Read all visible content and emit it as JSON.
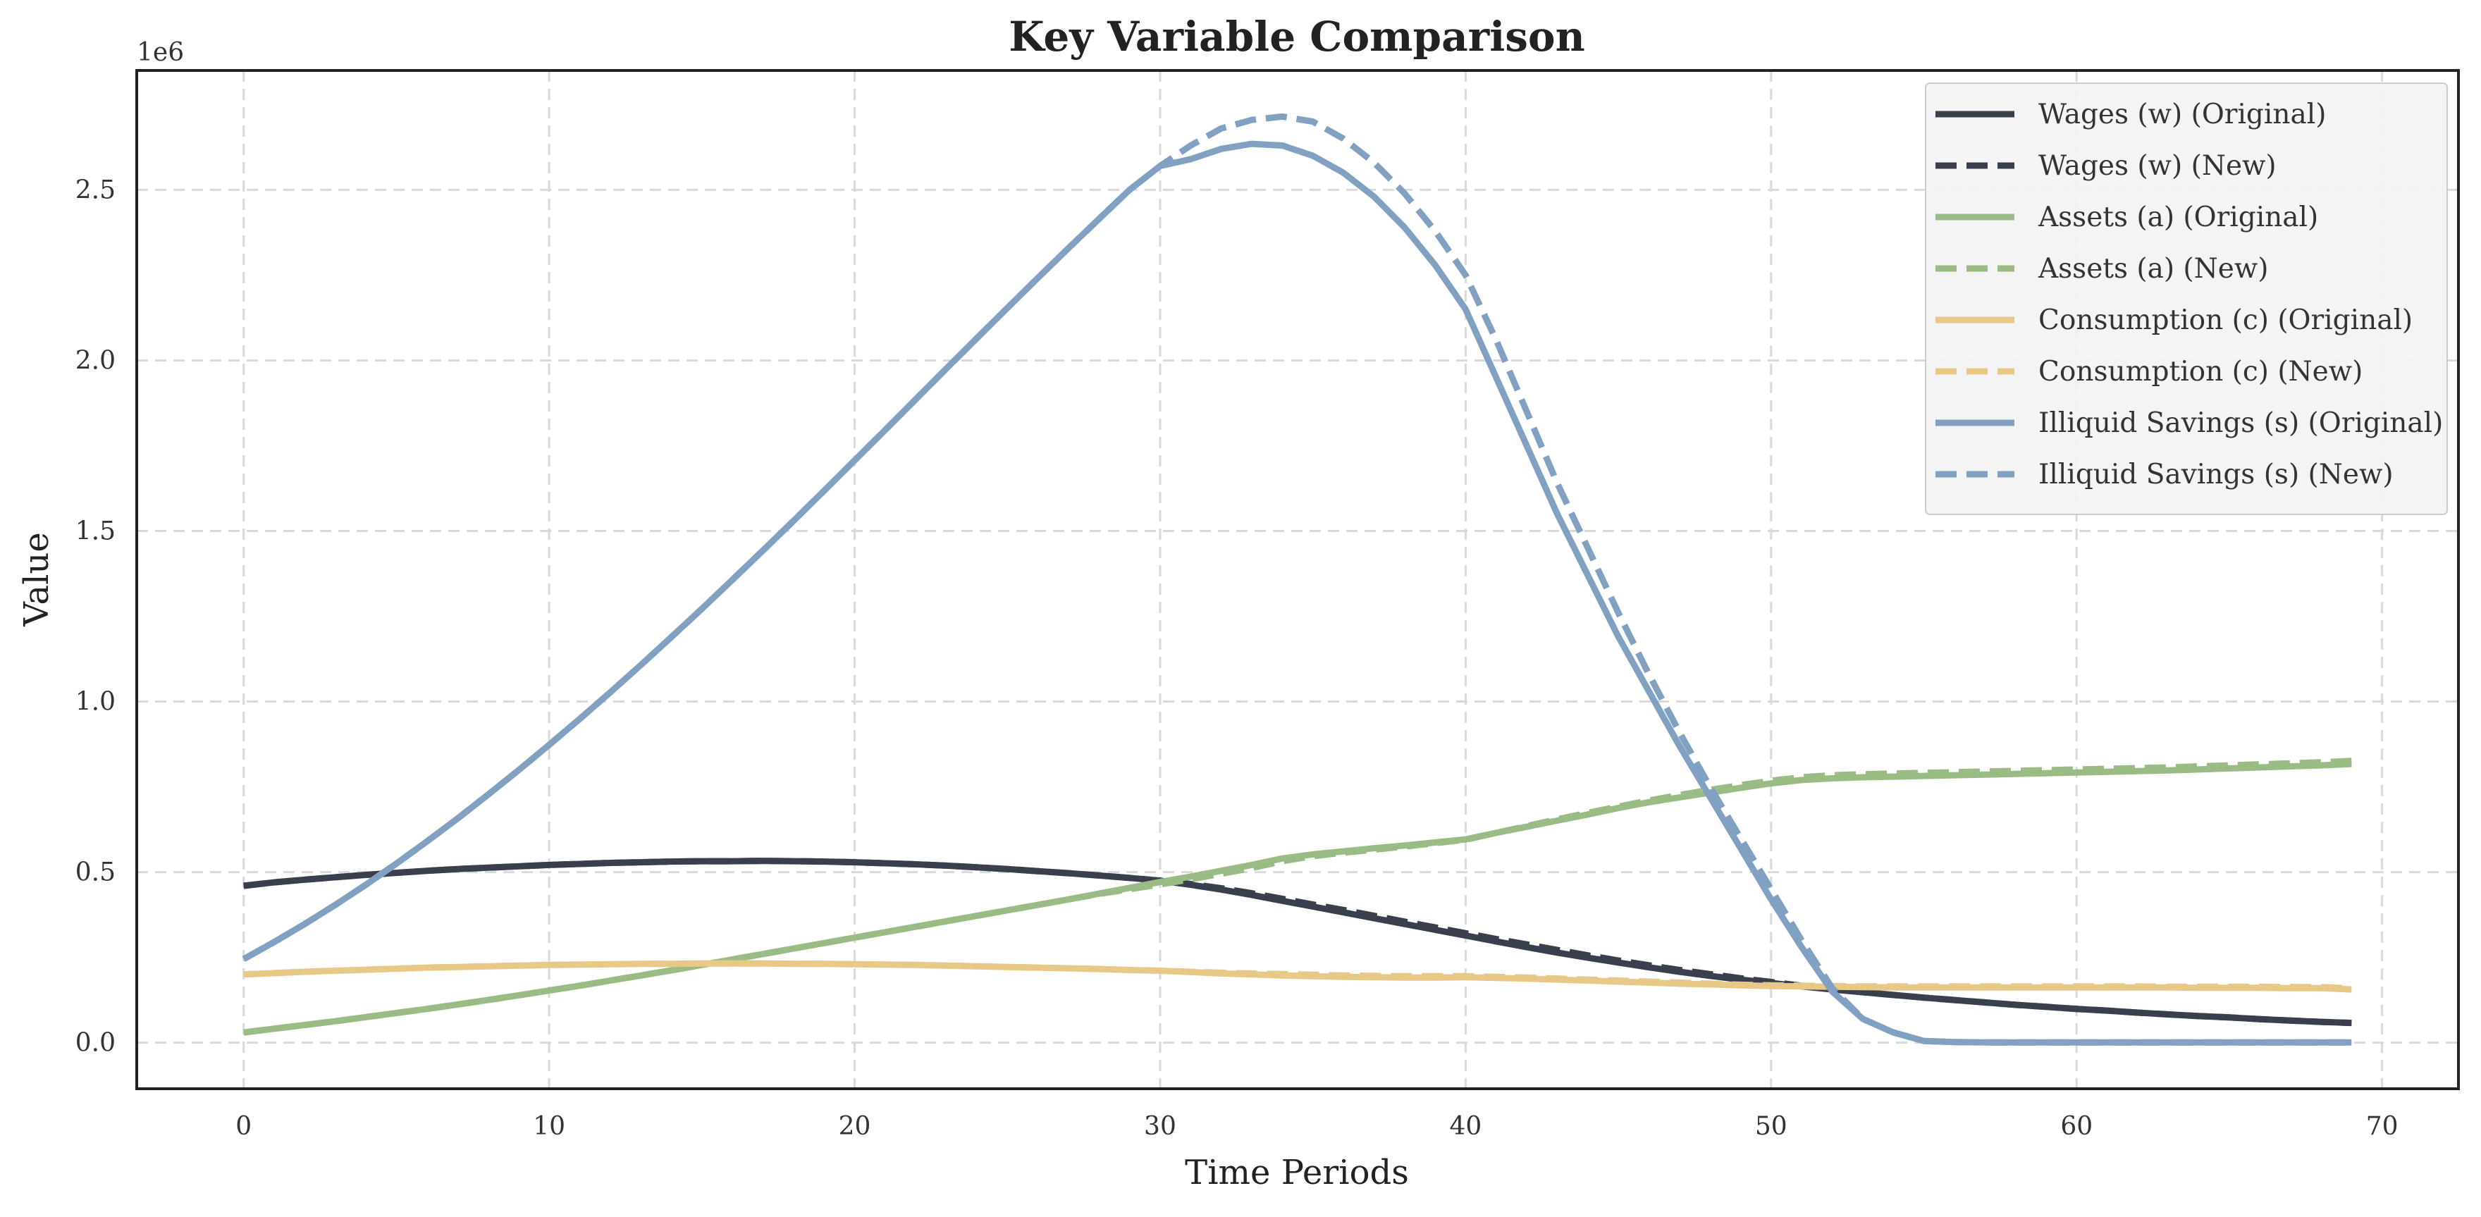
{
  "chart_data": {
    "type": "line",
    "title": "Key Variable Comparison",
    "xlabel": "Time Periods",
    "ylabel": "Value",
    "y_offset_label": "1e6",
    "xlim": [
      -3.5,
      72.5
    ],
    "ylim": [
      -0.135,
      2.85
    ],
    "x_ticks": [
      0,
      10,
      20,
      30,
      40,
      50,
      60,
      70
    ],
    "x_tick_labels": [
      "0",
      "10",
      "20",
      "30",
      "40",
      "50",
      "60",
      "70"
    ],
    "y_ticks": [
      0.0,
      0.5,
      1.0,
      1.5,
      2.0,
      2.5
    ],
    "y_tick_labels": [
      "0.0",
      "0.5",
      "1.0",
      "1.5",
      "2.0",
      "2.5"
    ],
    "grid": true,
    "legend_position": "top-right",
    "x": [
      0,
      1,
      2,
      3,
      4,
      5,
      6,
      7,
      8,
      9,
      10,
      11,
      12,
      13,
      14,
      15,
      16,
      17,
      18,
      19,
      20,
      21,
      22,
      23,
      24,
      25,
      26,
      27,
      28,
      29,
      30,
      31,
      32,
      33,
      34,
      35,
      36,
      37,
      38,
      39,
      40,
      41,
      42,
      43,
      44,
      45,
      46,
      47,
      48,
      49,
      50,
      51,
      52,
      53,
      54,
      55,
      56,
      57,
      58,
      59,
      60,
      61,
      62,
      63,
      64,
      65,
      66,
      67,
      68,
      69
    ],
    "series": [
      {
        "name": "Wages (w) (Original)",
        "color": "#3a3f4e",
        "dash": "solid",
        "values": [
          0.46,
          0.47,
          0.478,
          0.485,
          0.492,
          0.498,
          0.504,
          0.509,
          0.513,
          0.517,
          0.521,
          0.524,
          0.527,
          0.529,
          0.531,
          0.532,
          0.532,
          0.533,
          0.532,
          0.531,
          0.529,
          0.526,
          0.523,
          0.519,
          0.514,
          0.509,
          0.503,
          0.497,
          0.49,
          0.483,
          0.475,
          0.463,
          0.449,
          0.433,
          0.416,
          0.399,
          0.382,
          0.365,
          0.348,
          0.331,
          0.314,
          0.297,
          0.28,
          0.264,
          0.249,
          0.235,
          0.221,
          0.208,
          0.196,
          0.185,
          0.175,
          0.165,
          0.156,
          0.148,
          0.14,
          0.132,
          0.125,
          0.118,
          0.111,
          0.105,
          0.099,
          0.094,
          0.088,
          0.083,
          0.078,
          0.074,
          0.069,
          0.065,
          0.061,
          0.058
        ]
      },
      {
        "name": "Wages (w) (New)",
        "color": "#3a3f4e",
        "dash": "dashed",
        "values": [
          0.46,
          0.47,
          0.478,
          0.485,
          0.492,
          0.498,
          0.504,
          0.509,
          0.513,
          0.517,
          0.521,
          0.524,
          0.527,
          0.529,
          0.531,
          0.532,
          0.532,
          0.533,
          0.532,
          0.531,
          0.529,
          0.526,
          0.523,
          0.519,
          0.514,
          0.509,
          0.503,
          0.497,
          0.49,
          0.483,
          0.475,
          0.465,
          0.453,
          0.438,
          0.422,
          0.405,
          0.389,
          0.372,
          0.355,
          0.338,
          0.321,
          0.304,
          0.288,
          0.272,
          0.256,
          0.241,
          0.227,
          0.213,
          0.201,
          0.189,
          0.178,
          0.167,
          0.157,
          0.148,
          0.14,
          0.132,
          0.125,
          0.118,
          0.111,
          0.105,
          0.099,
          0.094,
          0.088,
          0.083,
          0.078,
          0.074,
          0.069,
          0.065,
          0.061,
          0.058
        ]
      },
      {
        "name": "Assets (a) (Original)",
        "color": "#9bbb84",
        "dash": "solid",
        "values": [
          0.03,
          0.041,
          0.052,
          0.063,
          0.075,
          0.087,
          0.099,
          0.112,
          0.125,
          0.139,
          0.153,
          0.167,
          0.182,
          0.197,
          0.212,
          0.228,
          0.244,
          0.26,
          0.276,
          0.292,
          0.308,
          0.324,
          0.34,
          0.356,
          0.372,
          0.388,
          0.404,
          0.42,
          0.437,
          0.454,
          0.471,
          0.487,
          0.504,
          0.521,
          0.54,
          0.552,
          0.561,
          0.57,
          0.578,
          0.587,
          0.596,
          0.615,
          0.633,
          0.651,
          0.669,
          0.688,
          0.705,
          0.719,
          0.733,
          0.747,
          0.76,
          0.77,
          0.775,
          0.778,
          0.78,
          0.782,
          0.784,
          0.786,
          0.788,
          0.79,
          0.792,
          0.794,
          0.796,
          0.798,
          0.801,
          0.804,
          0.807,
          0.81,
          0.813,
          0.817
        ]
      },
      {
        "name": "Assets (a) (New)",
        "color": "#9bbb84",
        "dash": "dashed",
        "values": [
          0.03,
          0.041,
          0.052,
          0.063,
          0.075,
          0.087,
          0.099,
          0.112,
          0.125,
          0.139,
          0.153,
          0.167,
          0.182,
          0.197,
          0.212,
          0.228,
          0.244,
          0.26,
          0.276,
          0.292,
          0.308,
          0.324,
          0.34,
          0.356,
          0.372,
          0.388,
          0.404,
          0.42,
          0.436,
          0.45,
          0.464,
          0.479,
          0.495,
          0.512,
          0.532,
          0.547,
          0.557,
          0.566,
          0.575,
          0.585,
          0.595,
          0.615,
          0.635,
          0.655,
          0.674,
          0.692,
          0.71,
          0.726,
          0.741,
          0.755,
          0.768,
          0.778,
          0.784,
          0.787,
          0.789,
          0.791,
          0.793,
          0.795,
          0.797,
          0.799,
          0.801,
          0.803,
          0.805,
          0.807,
          0.81,
          0.813,
          0.816,
          0.819,
          0.822,
          0.826
        ]
      },
      {
        "name": "Consumption (c) (Original)",
        "color": "#e8c886",
        "dash": "solid",
        "values": [
          0.2,
          0.204,
          0.208,
          0.211,
          0.214,
          0.217,
          0.22,
          0.222,
          0.224,
          0.226,
          0.228,
          0.229,
          0.23,
          0.231,
          0.231,
          0.232,
          0.232,
          0.232,
          0.231,
          0.231,
          0.23,
          0.229,
          0.228,
          0.226,
          0.224,
          0.222,
          0.22,
          0.218,
          0.216,
          0.213,
          0.211,
          0.207,
          0.203,
          0.2,
          0.197,
          0.195,
          0.193,
          0.192,
          0.191,
          0.191,
          0.192,
          0.19,
          0.188,
          0.185,
          0.182,
          0.179,
          0.176,
          0.173,
          0.171,
          0.168,
          0.166,
          0.165,
          0.164,
          0.163,
          0.162,
          0.162,
          0.162,
          0.162,
          0.162,
          0.162,
          0.162,
          0.162,
          0.162,
          0.162,
          0.161,
          0.161,
          0.161,
          0.16,
          0.16,
          0.156
        ]
      },
      {
        "name": "Consumption (c) (New)",
        "color": "#e8c886",
        "dash": "dashed",
        "values": [
          0.2,
          0.204,
          0.208,
          0.211,
          0.214,
          0.217,
          0.22,
          0.222,
          0.224,
          0.226,
          0.228,
          0.229,
          0.23,
          0.231,
          0.231,
          0.232,
          0.232,
          0.232,
          0.231,
          0.231,
          0.23,
          0.229,
          0.228,
          0.226,
          0.224,
          0.222,
          0.22,
          0.218,
          0.216,
          0.213,
          0.211,
          0.208,
          0.205,
          0.203,
          0.201,
          0.199,
          0.197,
          0.196,
          0.195,
          0.195,
          0.195,
          0.193,
          0.191,
          0.188,
          0.185,
          0.182,
          0.179,
          0.176,
          0.173,
          0.17,
          0.168,
          0.167,
          0.166,
          0.165,
          0.165,
          0.165,
          0.165,
          0.165,
          0.165,
          0.165,
          0.165,
          0.165,
          0.165,
          0.164,
          0.164,
          0.164,
          0.164,
          0.163,
          0.163,
          0.159
        ]
      },
      {
        "name": "Illiquid Savings (s) (Original)",
        "color": "#82a1c2",
        "dash": "solid",
        "values": [
          0.245,
          0.295,
          0.348,
          0.404,
          0.463,
          0.525,
          0.59,
          0.657,
          0.727,
          0.799,
          0.873,
          0.949,
          1.027,
          1.107,
          1.189,
          1.272,
          1.357,
          1.443,
          1.53,
          1.618,
          1.707,
          1.796,
          1.886,
          1.976,
          2.065,
          2.154,
          2.242,
          2.329,
          2.415,
          2.5,
          2.57,
          2.59,
          2.62,
          2.635,
          2.63,
          2.6,
          2.55,
          2.48,
          2.39,
          2.28,
          2.15,
          1.95,
          1.75,
          1.55,
          1.37,
          1.19,
          1.03,
          0.87,
          0.72,
          0.57,
          0.42,
          0.28,
          0.15,
          0.07,
          0.03,
          0.005,
          0.002,
          0.001,
          0.001,
          0.001,
          0.001,
          0.001,
          0.001,
          0.001,
          0.001,
          0.001,
          0.001,
          0.001,
          0.001,
          0.001
        ]
      },
      {
        "name": "Illiquid Savings (s) (New)",
        "color": "#82a1c2",
        "dash": "dashed",
        "values": [
          0.245,
          0.295,
          0.348,
          0.404,
          0.463,
          0.525,
          0.59,
          0.657,
          0.727,
          0.799,
          0.873,
          0.949,
          1.027,
          1.107,
          1.189,
          1.272,
          1.357,
          1.443,
          1.53,
          1.618,
          1.707,
          1.796,
          1.886,
          1.976,
          2.065,
          2.154,
          2.242,
          2.329,
          2.415,
          2.5,
          2.57,
          2.63,
          2.68,
          2.705,
          2.715,
          2.7,
          2.65,
          2.58,
          2.49,
          2.38,
          2.25,
          2.06,
          1.85,
          1.64,
          1.45,
          1.26,
          1.08,
          0.91,
          0.75,
          0.6,
          0.45,
          0.3,
          0.16,
          0.07,
          0.03,
          0.005,
          0.002,
          0.001,
          0.001,
          0.001,
          0.001,
          0.001,
          0.001,
          0.001,
          0.001,
          0.001,
          0.001,
          0.001,
          0.001,
          0.001
        ]
      }
    ]
  }
}
